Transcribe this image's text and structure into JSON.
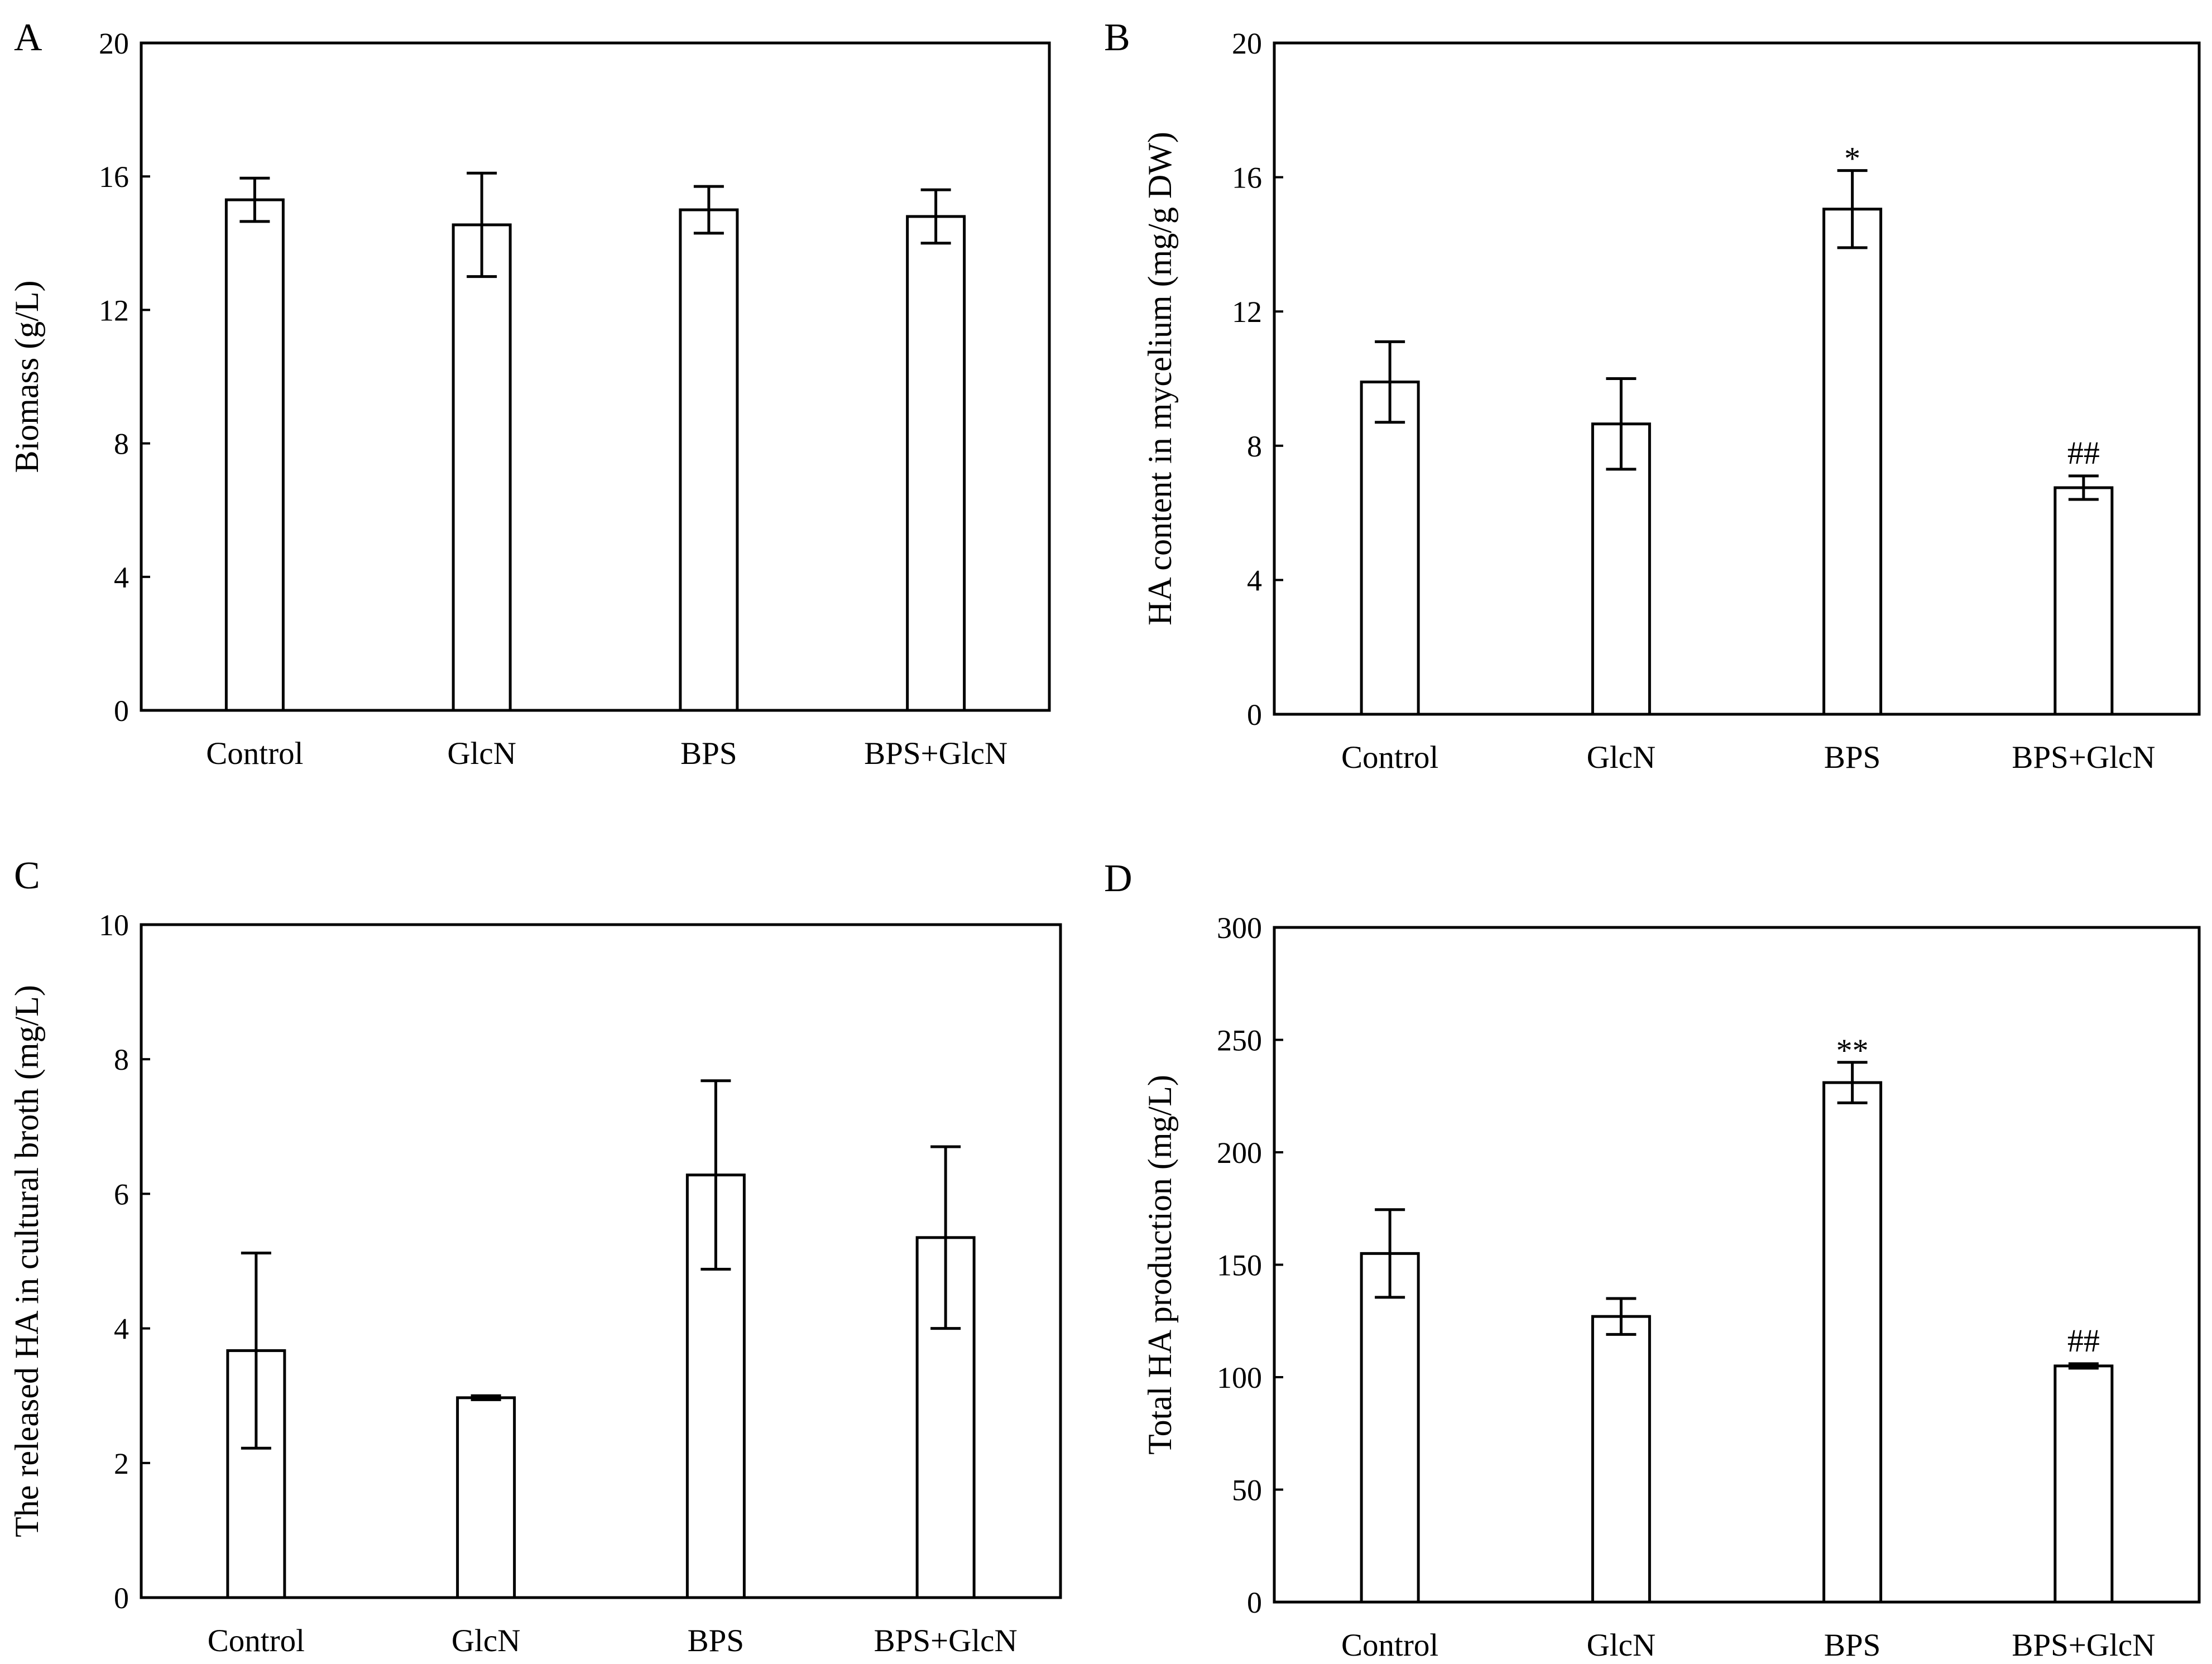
{
  "chart_data": [
    {
      "panel": "A",
      "type": "bar",
      "categories": [
        "Control",
        "GlcN",
        "BPS",
        "BPS+GlcN"
      ],
      "values": [
        15.3,
        14.55,
        15.0,
        14.8
      ],
      "errors": [
        0.65,
        1.55,
        0.7,
        0.8
      ],
      "annotations": [
        "",
        "",
        "",
        ""
      ],
      "ylabel": "Biomass (g/L)",
      "xlabel": "",
      "ylim": [
        0,
        20
      ],
      "yticks": [
        0,
        4,
        8,
        12,
        16,
        20
      ],
      "grid": false
    },
    {
      "panel": "B",
      "type": "bar",
      "categories": [
        "Control",
        "GlcN",
        "BPS",
        "BPS+GlcN"
      ],
      "values": [
        9.9,
        8.65,
        15.05,
        6.75
      ],
      "errors": [
        1.2,
        1.35,
        1.15,
        0.35
      ],
      "annotations": [
        "",
        "",
        "*",
        "##"
      ],
      "ylabel": "HA content in mycelium (mg/g DW)",
      "xlabel": "",
      "ylim": [
        0,
        20
      ],
      "yticks": [
        0,
        4,
        8,
        12,
        16,
        20
      ],
      "grid": false
    },
    {
      "panel": "C",
      "type": "bar",
      "categories": [
        "Control",
        "GlcN",
        "BPS",
        "BPS+GlcN"
      ],
      "values": [
        3.67,
        2.97,
        6.28,
        5.35
      ],
      "errors": [
        1.45,
        0.03,
        1.4,
        1.35
      ],
      "annotations": [
        "",
        "",
        "",
        ""
      ],
      "ylabel": "The released HA in cultural broth (mg/L)",
      "xlabel": "",
      "ylim": [
        0,
        10
      ],
      "yticks": [
        0,
        2,
        4,
        6,
        8,
        10
      ],
      "grid": false
    },
    {
      "panel": "D",
      "type": "bar",
      "categories": [
        "Control",
        "GlcN",
        "BPS",
        "BPS+GlcN"
      ],
      "values": [
        155,
        127,
        231,
        105
      ],
      "errors": [
        19.5,
        8,
        9,
        1
      ],
      "annotations": [
        "",
        "",
        "**",
        "##"
      ],
      "ylabel": "Total HA production (mg/L)",
      "xlabel": "",
      "ylim": [
        0,
        300
      ],
      "yticks": [
        0,
        50,
        100,
        150,
        200,
        250,
        300
      ],
      "grid": false
    }
  ]
}
